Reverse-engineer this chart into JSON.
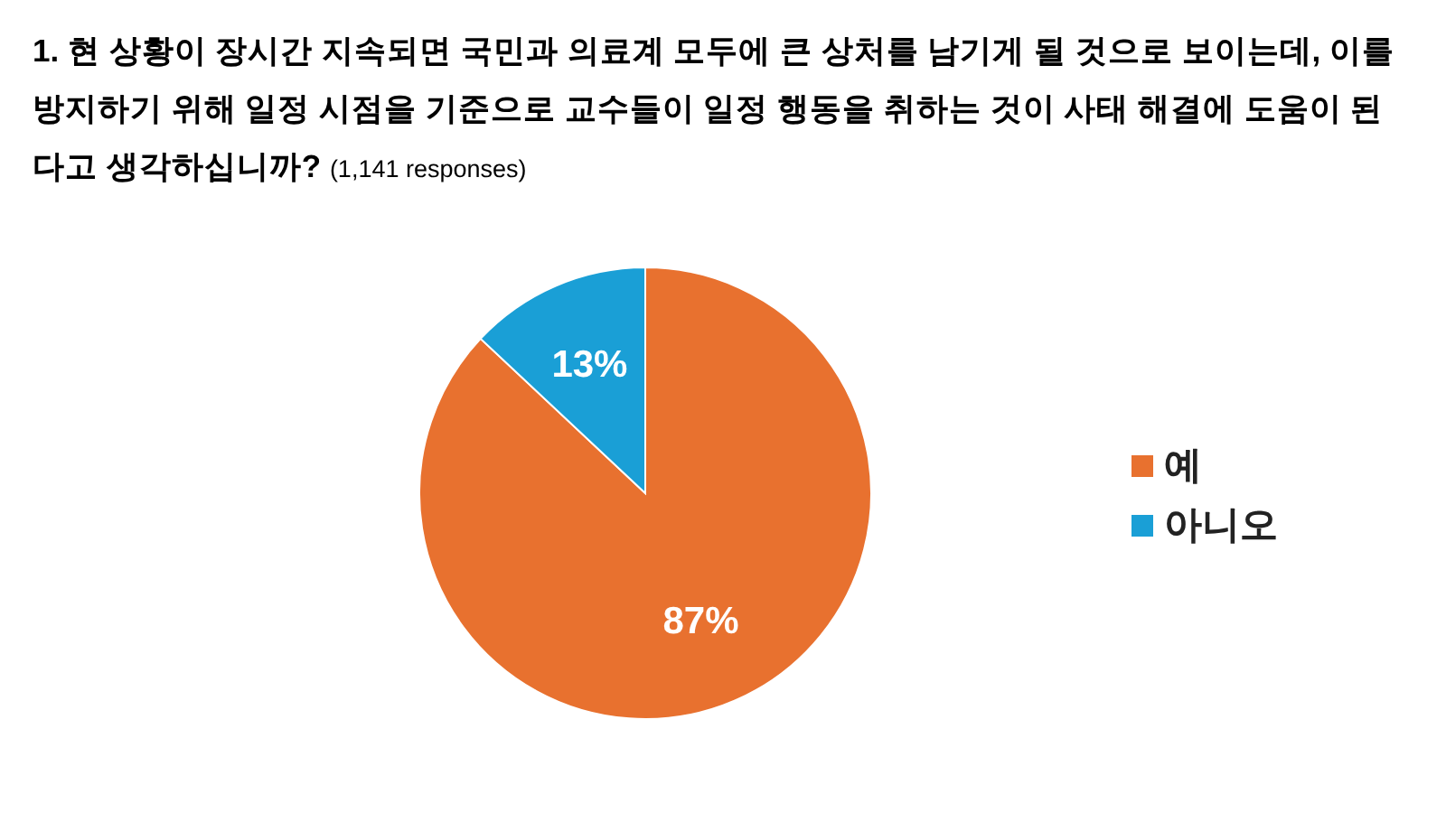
{
  "chart_data": {
    "type": "pie",
    "title": "1. 현 상황이 장시간 지속되면 국민과 의료계 모두에 큰 상처를 남기게 될 것으로 보이는데, 이를 방지하기 위해 일정 시점을 기준으로 교수들이 일정 행동을 취하는 것이 사태 해결에 도움이 된다고 생각하십니까?",
    "subtitle": "(1,141 responses)",
    "categories": [
      "예",
      "아니오"
    ],
    "values": [
      87,
      13
    ],
    "colors": [
      "#e8712f",
      "#1a9fd6"
    ],
    "value_labels": [
      "87%",
      "13%"
    ],
    "legend": "right"
  }
}
